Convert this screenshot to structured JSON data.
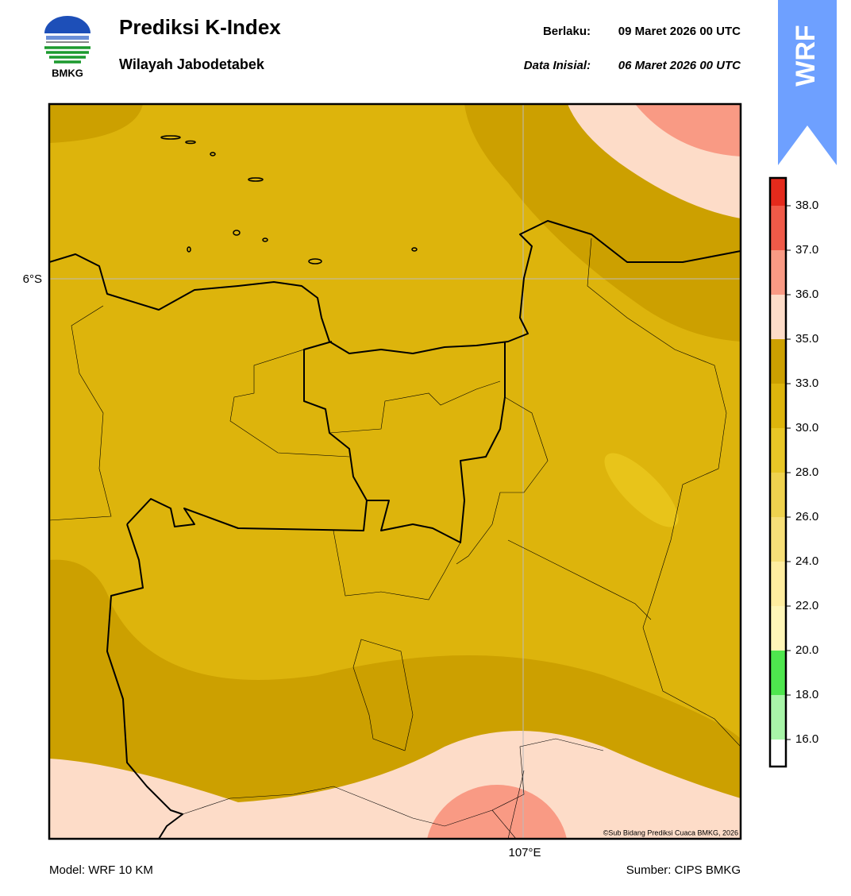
{
  "header": {
    "logo_text": "BMKG",
    "title": "Prediksi K-Index",
    "subtitle": "Wilayah Jabodetabek",
    "valid_label": "Berlaku:",
    "valid_time": "09 Maret 2026 00 UTC",
    "init_label": "Data Inisial:",
    "init_time": "06 Maret 2026 00 UTC",
    "badge": "WRF"
  },
  "map": {
    "lat_label": "6°S",
    "lon_label": "107°E",
    "copyright": "©Sub Bidang Prediksi Cuaca BMKG, 2026"
  },
  "colorbar": {
    "colors": [
      "#ffffff",
      "#a8f5a8",
      "#4ee64e",
      "#fff6b8",
      "#ffeda0",
      "#f7df78",
      "#efd24e",
      "#e8c626",
      "#ddb40c",
      "#cca000",
      "#fddcc8",
      "#f99a84",
      "#f05a48",
      "#e42a1c"
    ],
    "ticks": [
      {
        "value": 16,
        "label": "16.0"
      },
      {
        "value": 18,
        "label": "18.0"
      },
      {
        "value": 20,
        "label": "20.0"
      },
      {
        "value": 22,
        "label": "22.0"
      },
      {
        "value": 24,
        "label": "24.0"
      },
      {
        "value": 26,
        "label": "26.0"
      },
      {
        "value": 28,
        "label": "28.0"
      },
      {
        "value": 30,
        "label": "30.0"
      },
      {
        "value": 33,
        "label": "33.0"
      },
      {
        "value": 35,
        "label": "35.0"
      },
      {
        "value": 36,
        "label": "36.0"
      },
      {
        "value": 37,
        "label": "37.0"
      },
      {
        "value": 38,
        "label": "38.0"
      }
    ]
  },
  "footer": {
    "model": "Model: WRF 10 KM",
    "source": "Sumber: CIPS BMKG"
  }
}
